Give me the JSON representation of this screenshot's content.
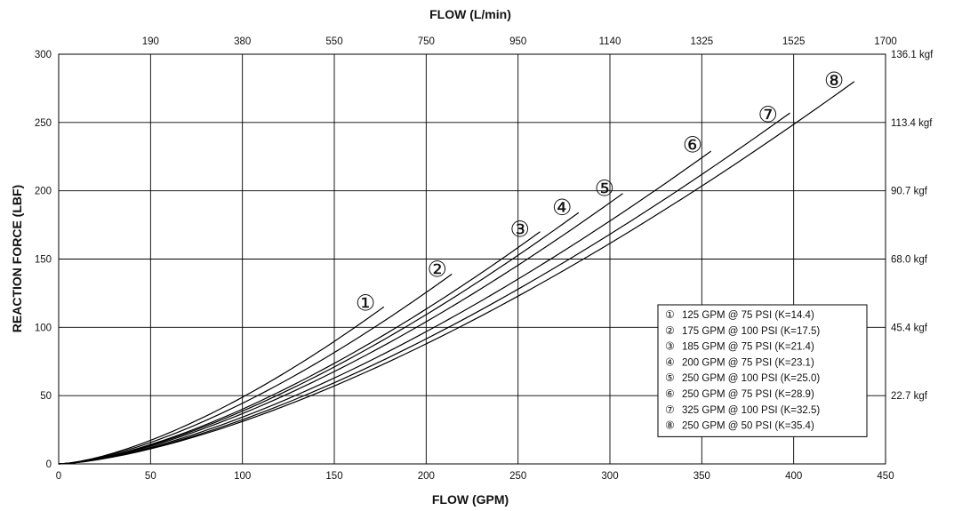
{
  "chart_data": {
    "type": "line",
    "title": "",
    "xlabel": "FLOW (GPM)",
    "ylabel": "REACTION FORCE (LBF)",
    "x2label": "FLOW (L/min)",
    "xlim": [
      0,
      450
    ],
    "ylim": [
      0,
      300
    ],
    "x_ticks": [
      0,
      50,
      100,
      150,
      200,
      250,
      300,
      350,
      400,
      450
    ],
    "y_ticks": [
      0,
      50,
      100,
      150,
      200,
      250,
      300
    ],
    "top_ticks": [
      {
        "x": 50,
        "label": "190"
      },
      {
        "x": 100,
        "label": "380"
      },
      {
        "x": 150,
        "label": "550"
      },
      {
        "x": 200,
        "label": "750"
      },
      {
        "x": 250,
        "label": "950"
      },
      {
        "x": 300,
        "label": "1140"
      },
      {
        "x": 350,
        "label": "1325"
      },
      {
        "x": 400,
        "label": "1525"
      },
      {
        "x": 450,
        "label": "1700"
      }
    ],
    "right_ticks": [
      {
        "y": 50,
        "label": "22.7 kgf"
      },
      {
        "y": 100,
        "label": "45.4 kgf"
      },
      {
        "y": 150,
        "label": "68.0 kgf"
      },
      {
        "y": 200,
        "label": "90.7 kgf"
      },
      {
        "y": 250,
        "label": "113.4 kgf"
      },
      {
        "y": 300,
        "label": "136.1 kgf"
      }
    ],
    "grid": true,
    "legend_position": "bottom-right",
    "series": [
      {
        "marker": "①",
        "name": "125 GPM @ 75 PSI (K=14.4)",
        "x_end": 177,
        "y_end": 115,
        "label_x": 167,
        "label_y": 118
      },
      {
        "marker": "②",
        "name": "175 GPM @ 100 PSI (K=17.5)",
        "x_end": 214,
        "y_end": 139,
        "label_x": 206,
        "label_y": 143
      },
      {
        "marker": "③",
        "name": "185 GPM @ 75 PSI (K=21.4)",
        "x_end": 262,
        "y_end": 170,
        "label_x": 251,
        "label_y": 172
      },
      {
        "marker": "④",
        "name": "200 GPM @ 75 PSI (K=23.1)",
        "x_end": 283,
        "y_end": 184,
        "label_x": 274,
        "label_y": 188
      },
      {
        "marker": "⑤",
        "name": "250 GPM @ 100 PSI (K=25.0)",
        "x_end": 307,
        "y_end": 198,
        "label_x": 297,
        "label_y": 202
      },
      {
        "marker": "⑥",
        "name": "250 GPM @ 75 PSI (K=28.9)",
        "x_end": 355,
        "y_end": 229,
        "label_x": 345,
        "label_y": 234
      },
      {
        "marker": "⑦",
        "name": "325 GPM @ 100 PSI (K=32.5)",
        "x_end": 398,
        "y_end": 257,
        "label_x": 386,
        "label_y": 256
      },
      {
        "marker": "⑧",
        "name": "250 GPM @ 50 PSI (K=35.4)",
        "x_end": 433,
        "y_end": 280,
        "label_x": 422,
        "label_y": 281
      }
    ]
  }
}
